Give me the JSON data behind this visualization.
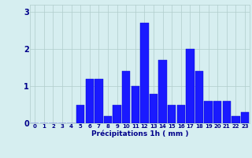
{
  "hours": [
    0,
    1,
    2,
    3,
    4,
    5,
    6,
    7,
    8,
    9,
    10,
    11,
    12,
    13,
    14,
    15,
    16,
    17,
    18,
    19,
    20,
    21,
    22,
    23
  ],
  "values": [
    0.0,
    0.0,
    0.0,
    0.0,
    0.0,
    0.5,
    1.2,
    1.2,
    0.2,
    0.5,
    1.4,
    1.0,
    2.7,
    0.8,
    1.7,
    0.5,
    0.5,
    2.0,
    1.4,
    0.6,
    0.6,
    0.6,
    0.2,
    0.3
  ],
  "bar_color": "#1a1aff",
  "bar_edge_color": "#0000cc",
  "background_color": "#d6eef0",
  "grid_color": "#b0cccc",
  "xlabel": "Précipitations 1h ( mm )",
  "xlabel_color": "#00008b",
  "tick_color": "#00008b",
  "ylim": [
    0,
    3.2
  ],
  "yticks": [
    0,
    1,
    2,
    3
  ],
  "xlim": [
    -0.5,
    23.5
  ]
}
